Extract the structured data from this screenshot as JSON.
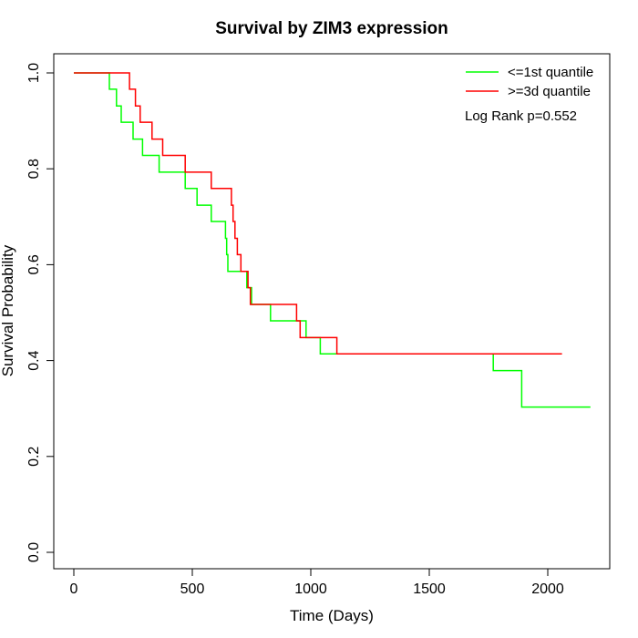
{
  "chart_data": {
    "type": "line",
    "step": true,
    "title": "Survival by ZIM3 expression",
    "xlabel": "Time (Days)",
    "ylabel": "Survival Probability",
    "xlim": [
      0,
      2180
    ],
    "ylim": [
      0,
      1
    ],
    "x_ticks": [
      0,
      500,
      1000,
      1500,
      2000
    ],
    "y_ticks": [
      0.0,
      0.2,
      0.4,
      0.6,
      0.8,
      1.0
    ],
    "x_tick_labels": [
      "0",
      "500",
      "1000",
      "1500",
      "2000"
    ],
    "y_tick_labels": [
      "0.0",
      "0.2",
      "0.4",
      "0.6",
      "0.8",
      "1.0"
    ],
    "legend_position": "top-right",
    "annotation": "Log Rank p=0.552",
    "series": [
      {
        "name": "<=1st quantile",
        "color": "#00ff00",
        "x": [
          0,
          150,
          180,
          200,
          250,
          290,
          360,
          470,
          520,
          580,
          640,
          645,
          650,
          730,
          750,
          830,
          980,
          1040,
          1770,
          1890,
          2180
        ],
        "y": [
          1.0,
          0.966,
          0.931,
          0.897,
          0.862,
          0.828,
          0.793,
          0.759,
          0.724,
          0.69,
          0.655,
          0.621,
          0.586,
          0.552,
          0.517,
          0.483,
          0.448,
          0.414,
          0.379,
          0.303,
          0.303
        ]
      },
      {
        "name": ">=3d quantile",
        "color": "#ff0000",
        "x": [
          0,
          235,
          260,
          280,
          330,
          375,
          470,
          580,
          665,
          672,
          680,
          690,
          705,
          735,
          745,
          940,
          955,
          1110,
          1150,
          1260,
          2060
        ],
        "y": [
          1.0,
          0.966,
          0.931,
          0.897,
          0.862,
          0.828,
          0.793,
          0.759,
          0.724,
          0.69,
          0.655,
          0.621,
          0.586,
          0.552,
          0.517,
          0.483,
          0.448,
          0.414,
          0.414,
          0.414,
          0.414
        ]
      }
    ]
  }
}
